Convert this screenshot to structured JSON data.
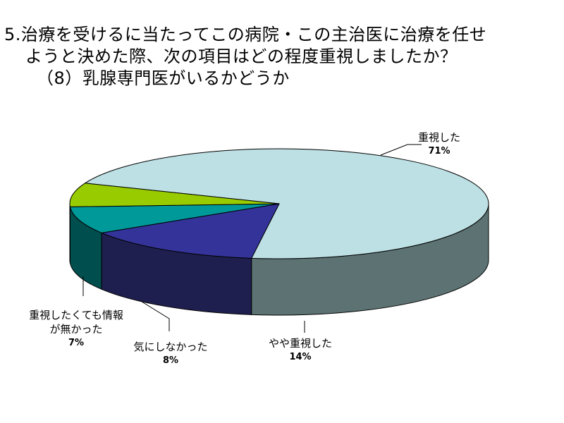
{
  "title": {
    "line1": "5.治療を受けるに当たってこの病院・この主治医に治療を任せ",
    "line2": "ようと決めた際、次の項目はどの程度重視しましたか？",
    "line3": "（8）乳腺専門医がいるかどうか"
  },
  "chart_data": {
    "type": "pie",
    "style": "3d",
    "slices": [
      {
        "label": "重視した",
        "value": 71,
        "display": "71%",
        "top_color": "#bde0e4",
        "side_color": "#5d7373"
      },
      {
        "label": "やや重視した",
        "value": 14,
        "display": "14%",
        "top_color": "#333399",
        "side_color": "#1f1f4f"
      },
      {
        "label": "気にしなかった",
        "value": 8,
        "display": "8%",
        "top_color": "#009999",
        "side_color": "#004e4e"
      },
      {
        "label": "重視したくても情報が無かった",
        "value": 7,
        "display": "7%",
        "top_color": "#99cc00",
        "side_color": "#4d6600"
      }
    ]
  }
}
